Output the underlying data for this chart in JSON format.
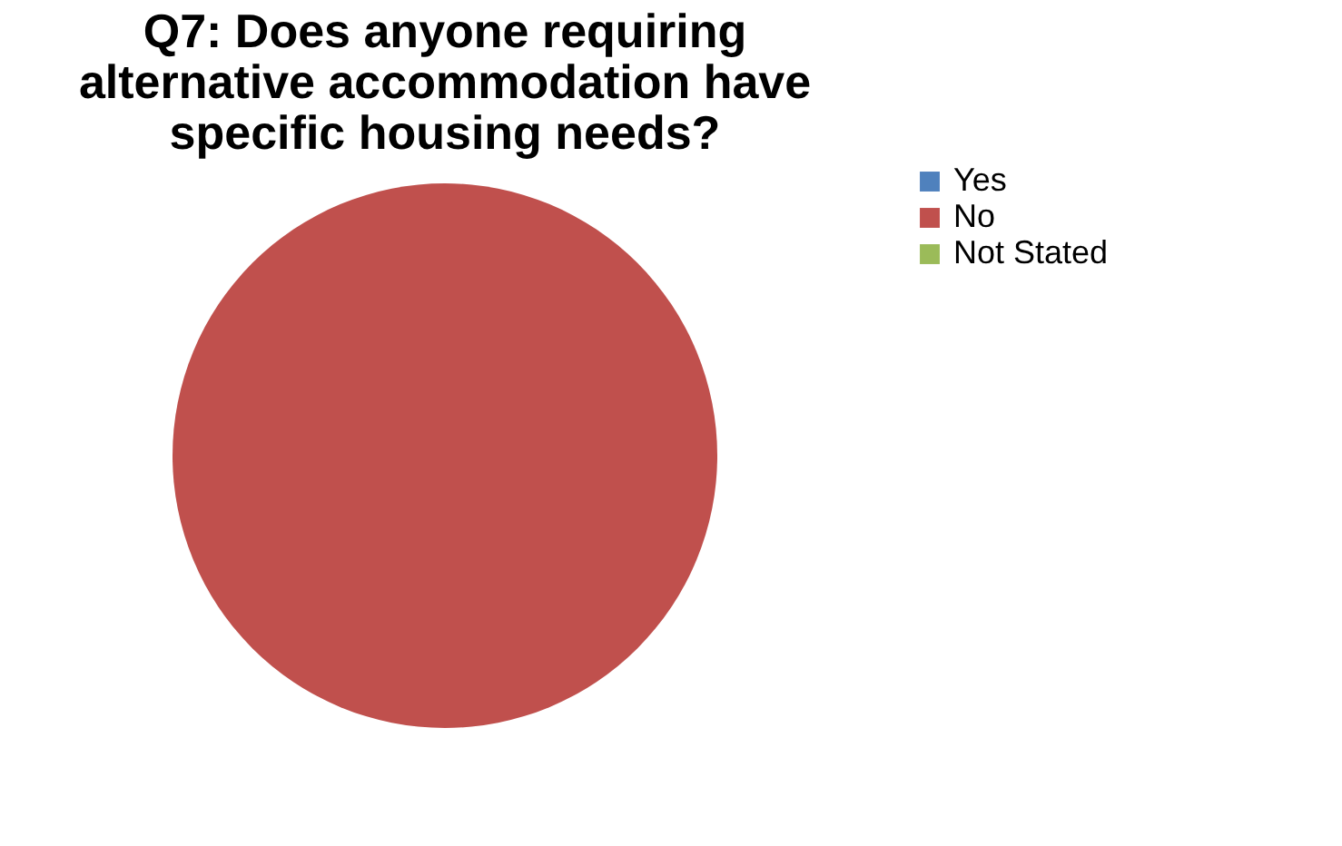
{
  "chart_data": {
    "type": "pie",
    "title": "Q7: Does anyone requiring alternative accommodation have specific housing needs?",
    "categories": [
      "Yes",
      "No",
      "Not Stated"
    ],
    "values": [
      0,
      100,
      0
    ],
    "colors": [
      "#4f81bd",
      "#c0504d",
      "#9bbb59"
    ],
    "legend": "right"
  }
}
